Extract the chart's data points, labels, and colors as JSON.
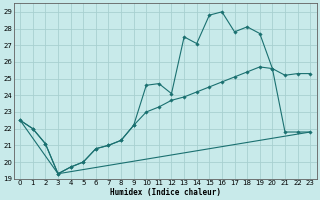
{
  "xlabel": "Humidex (Indice chaleur)",
  "background_color": "#c8eaea",
  "grid_color": "#a8d0d0",
  "line_color": "#1a7070",
  "xlim": [
    -0.5,
    23.5
  ],
  "ylim": [
    19,
    29.5
  ],
  "xticks": [
    0,
    1,
    2,
    3,
    4,
    5,
    6,
    7,
    8,
    9,
    10,
    11,
    12,
    13,
    14,
    15,
    16,
    17,
    18,
    19,
    20,
    21,
    22,
    23
  ],
  "yticks": [
    19,
    20,
    21,
    22,
    23,
    24,
    25,
    26,
    27,
    28,
    29
  ],
  "series1_wiggly": {
    "x": [
      0,
      1,
      2,
      3,
      4,
      5,
      6,
      7,
      8,
      9,
      10,
      11,
      12,
      13,
      14,
      15,
      16,
      17,
      18,
      19,
      20,
      21,
      22,
      23
    ],
    "y": [
      22.5,
      22.0,
      21.1,
      19.3,
      19.7,
      20.0,
      20.8,
      21.0,
      21.3,
      22.2,
      24.6,
      24.7,
      24.1,
      27.5,
      27.1,
      28.8,
      29.0,
      27.8,
      28.1,
      27.7,
      25.6,
      25.2,
      25.3,
      25.3
    ]
  },
  "series2_smooth": {
    "x": [
      0,
      1,
      2,
      3,
      4,
      5,
      6,
      7,
      8,
      9,
      10,
      11,
      12,
      13,
      14,
      15,
      16,
      17,
      18,
      19,
      20,
      21,
      22,
      23
    ],
    "y": [
      22.5,
      22.0,
      21.1,
      19.3,
      19.7,
      20.0,
      20.8,
      21.0,
      21.3,
      22.2,
      23.0,
      23.3,
      23.7,
      23.9,
      24.2,
      24.5,
      24.8,
      25.1,
      25.4,
      25.7,
      25.6,
      21.8,
      21.8,
      21.8
    ]
  },
  "series3_bottom": {
    "x": [
      0,
      3,
      23
    ],
    "y": [
      22.5,
      19.3,
      21.8
    ]
  }
}
